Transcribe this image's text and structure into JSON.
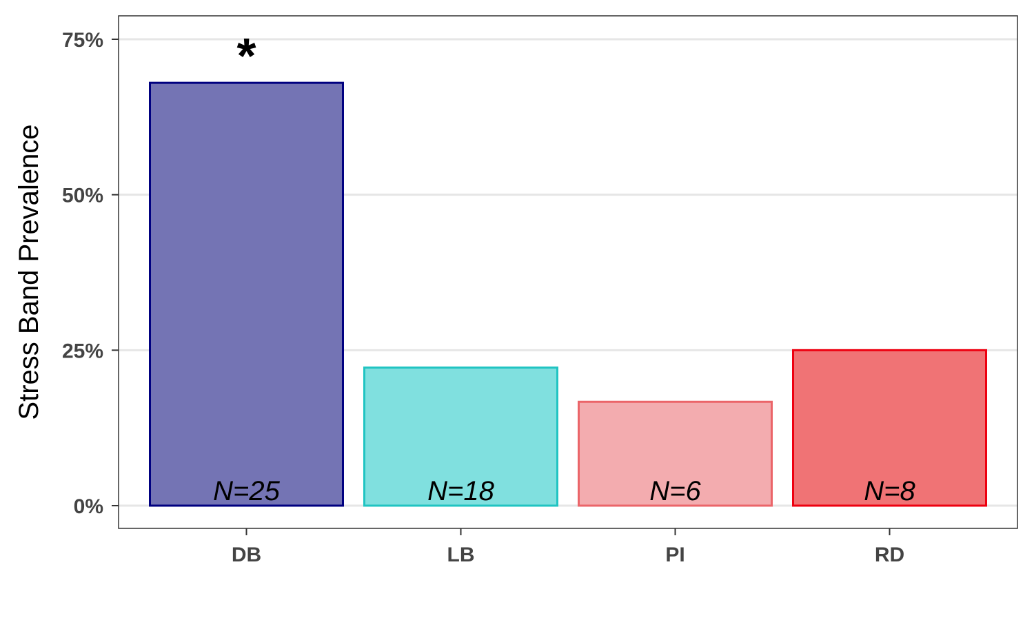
{
  "chart_data": {
    "type": "bar",
    "title": "",
    "xlabel": "",
    "ylabel": "Stress Band Prevalence",
    "categories": [
      "DB",
      "LB",
      "PI",
      "RD"
    ],
    "values": [
      68,
      22.2,
      16.7,
      25
    ],
    "value_unit": "%",
    "ylim": [
      0,
      75
    ],
    "y_ticks": [
      0,
      25,
      50,
      75
    ],
    "y_tick_labels": [
      "0%",
      "25%",
      "50%",
      "75%"
    ],
    "bar_labels": [
      "N=25",
      "N=18",
      "N=6",
      "N=8"
    ],
    "significance_marks": [
      "*",
      "",
      "",
      ""
    ],
    "bar_fill_colors": [
      "#7474b4",
      "#80e0df",
      "#f3acaf",
      "#f07375"
    ],
    "bar_stroke_colors": [
      "#000080",
      "#20c4c2",
      "#eb6569",
      "#ee0010"
    ],
    "grid": true,
    "legend": "none"
  }
}
